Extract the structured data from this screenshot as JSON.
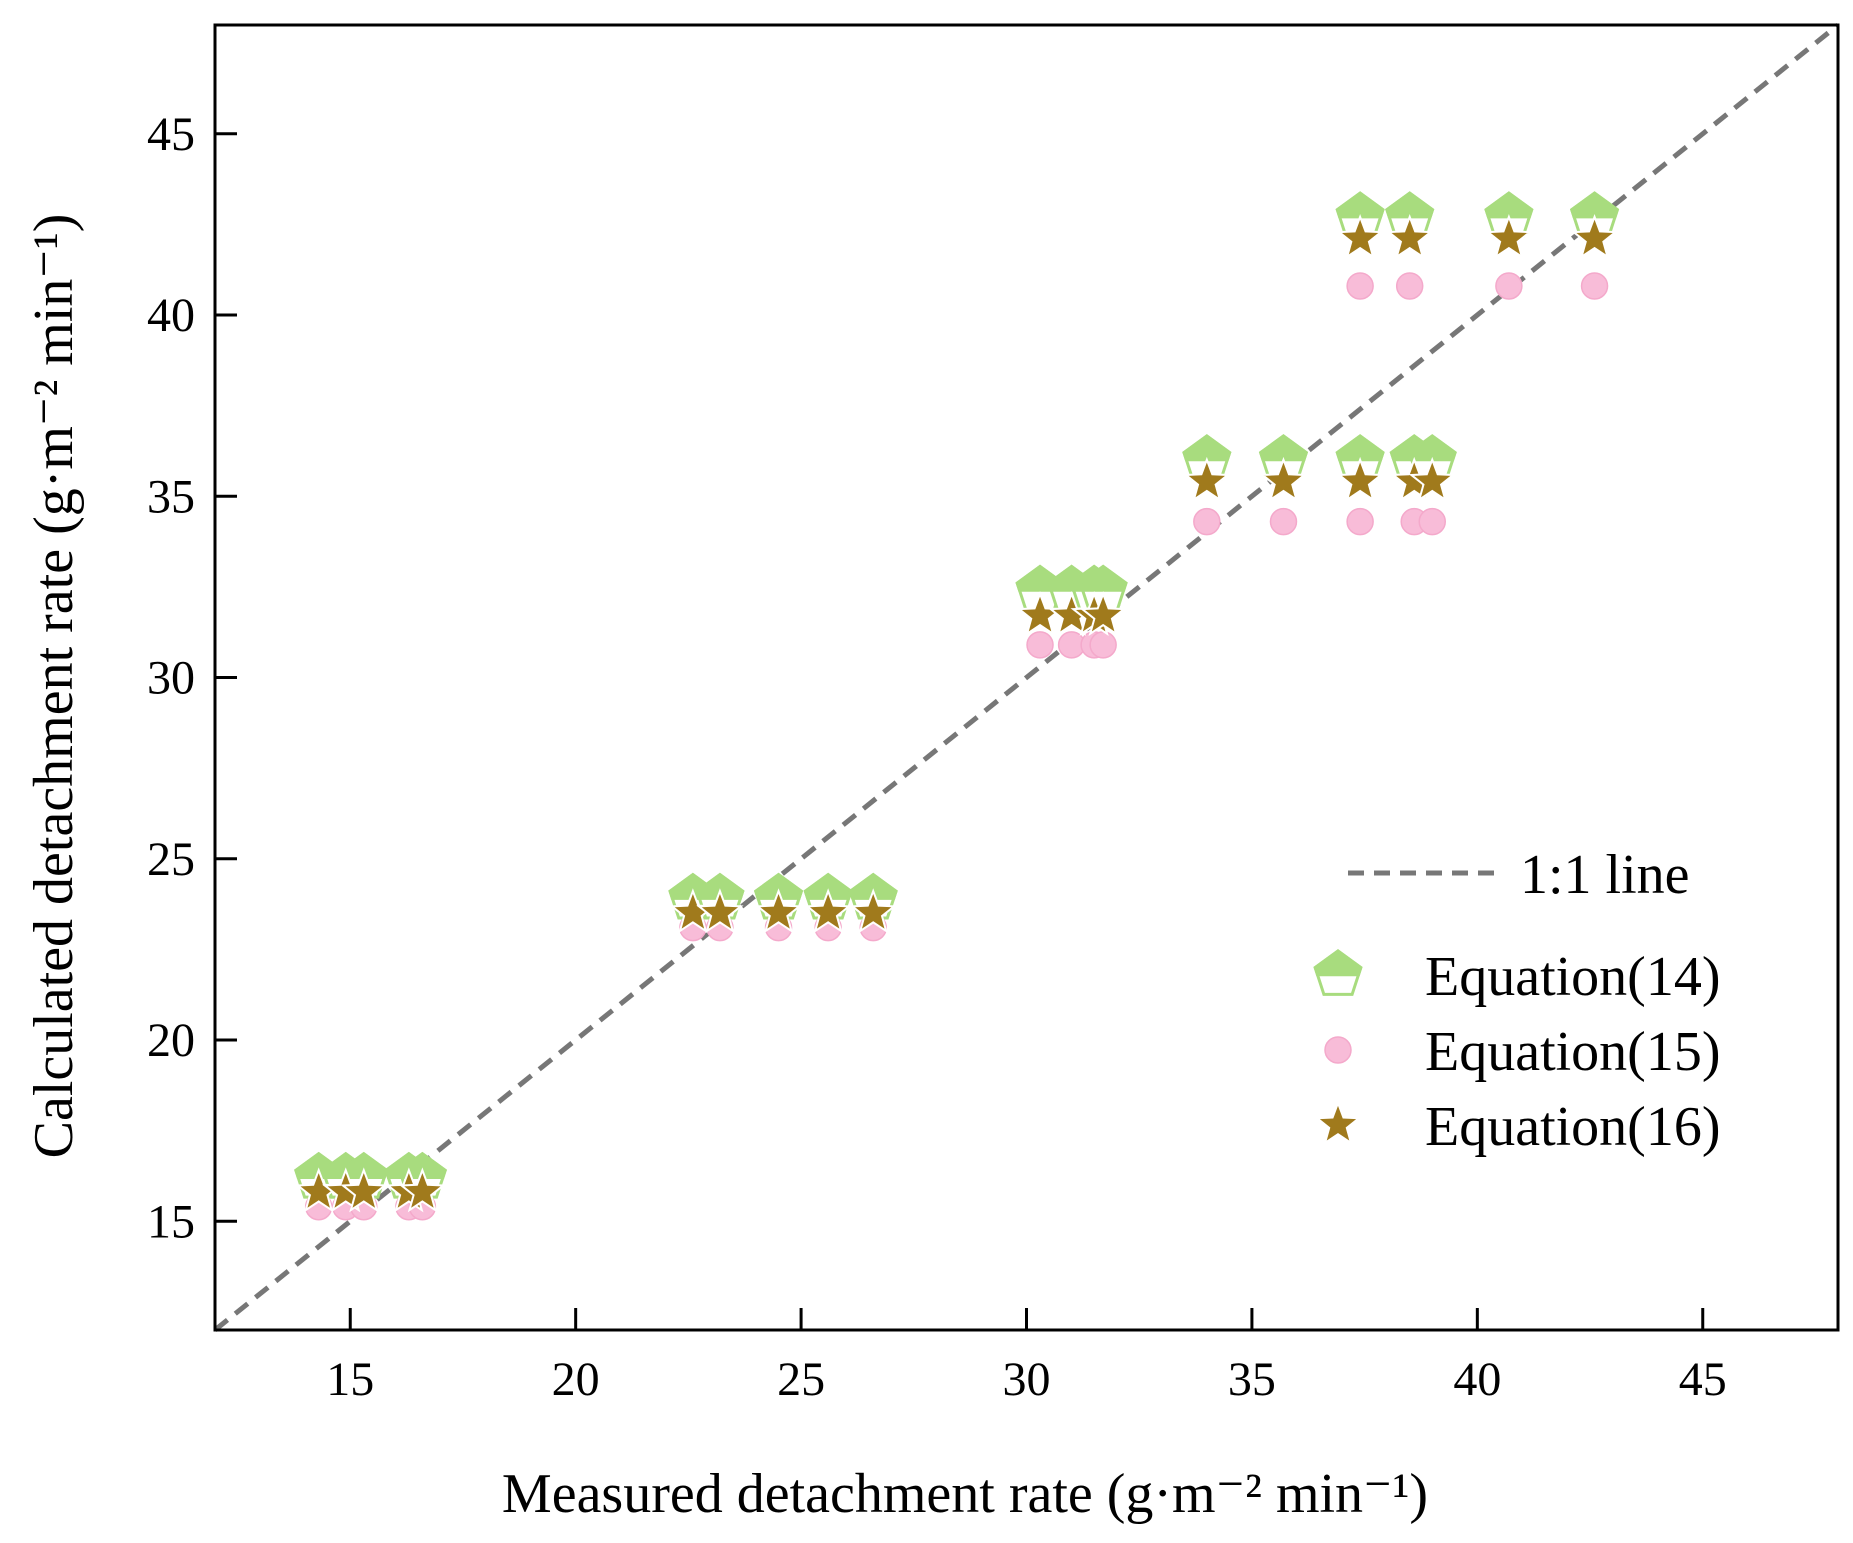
{
  "chart_data": {
    "type": "scatter",
    "xlabel": "Measured detachment rate (g·m⁻² min⁻¹)",
    "ylabel": "Calculated detachment rate (g·m⁻² min⁻¹)",
    "xlim": [
      12,
      48
    ],
    "ylim": [
      12,
      48
    ],
    "x_ticks": [
      15,
      20,
      25,
      30,
      35,
      40,
      45
    ],
    "y_ticks": [
      15,
      20,
      25,
      30,
      35,
      40,
      45
    ],
    "x_tick_labels": [
      "15",
      "20",
      "25",
      "30",
      "35",
      "40",
      "45"
    ],
    "y_tick_labels": [
      "15",
      "20",
      "25",
      "30",
      "35",
      "40",
      "45"
    ],
    "grid": false,
    "legend_position": "bottom-right",
    "reference_line": {
      "name": "1:1 line",
      "style": "dashed",
      "color": "#777777"
    },
    "x": [
      14.3,
      14.9,
      15.3,
      16.3,
      16.6,
      22.6,
      23.2,
      24.5,
      25.6,
      26.6,
      30.3,
      31.0,
      31.5,
      31.7,
      34.0,
      35.7,
      37.4,
      38.6,
      39.0,
      37.4,
      38.5,
      40.7,
      42.6
    ],
    "series": [
      {
        "name": "Equation(14)",
        "marker": "pentagon-half-filled",
        "color": "#a8dc7e",
        "values": [
          16.2,
          16.2,
          16.2,
          16.2,
          16.2,
          23.9,
          23.9,
          23.9,
          23.9,
          23.9,
          32.4,
          32.4,
          32.4,
          32.4,
          36.0,
          36.0,
          36.0,
          36.0,
          36.0,
          42.7,
          42.7,
          42.7,
          42.7
        ]
      },
      {
        "name": "Equation(15)",
        "marker": "circle",
        "color": "#f8bcd8",
        "values": [
          15.4,
          15.4,
          15.4,
          15.4,
          15.4,
          23.1,
          23.1,
          23.1,
          23.1,
          23.1,
          30.9,
          30.9,
          30.9,
          30.9,
          34.3,
          34.3,
          34.3,
          34.3,
          34.3,
          40.8,
          40.8,
          40.8,
          40.8
        ]
      },
      {
        "name": "Equation(16)",
        "marker": "star",
        "color": "#a07a1c",
        "values": [
          15.8,
          15.8,
          15.8,
          15.8,
          15.8,
          23.5,
          23.5,
          23.5,
          23.5,
          23.5,
          31.7,
          31.7,
          31.7,
          31.7,
          35.4,
          35.4,
          35.4,
          35.4,
          35.4,
          42.1,
          42.1,
          42.1,
          42.1
        ]
      }
    ]
  }
}
